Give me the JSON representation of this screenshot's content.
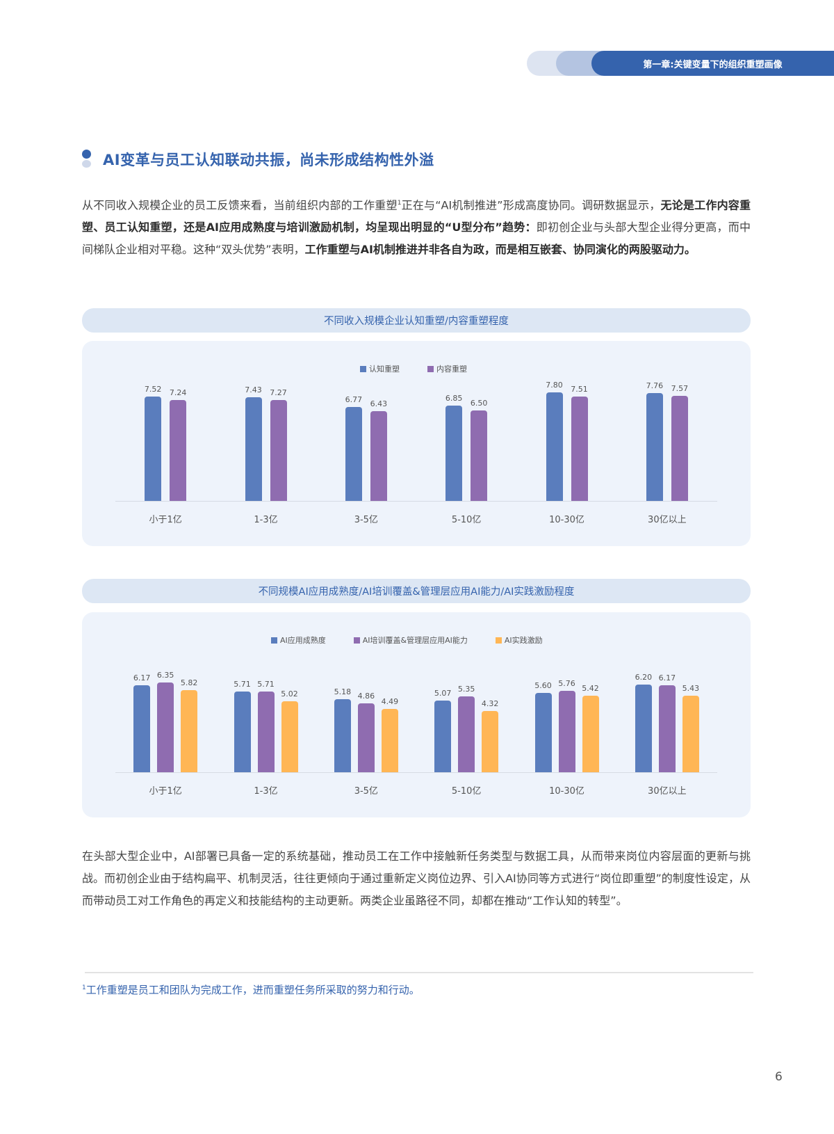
{
  "header": {
    "chapter_tab": "第一章:关键变量下的组织重塑画像"
  },
  "section": {
    "heading": "AI变革与员工认知联动共振，尚未形成结构性外溢"
  },
  "intro_paragraph": {
    "segments": [
      {
        "text": "从不同收入规模企业的员工反馈来看，当前组织内部的工作重塑",
        "bold": false
      },
      {
        "text": "1",
        "sup": true
      },
      {
        "text": "正在与“AI机制推进”形成高度协同。调研数据显示，",
        "bold": false
      },
      {
        "text": "无论是工作内容重塑、员工认知重塑，还是AI应用成熟度与培训激励机制，均呈现出明显的“U型分布”趋势：",
        "bold": true
      },
      {
        "text": "即初创企业与头部大型企业得分更高，而中间梯队企业相对平稳。这种“双头优势”表明，",
        "bold": false
      },
      {
        "text": "工作重塑与AI机制推进并非各自为政，而是相互嵌套、协同演化的两股驱动力。",
        "bold": true
      }
    ]
  },
  "chart1": {
    "title": "不同收入规模企业认知重塑/内容重塑程度"
  },
  "chart2": {
    "title": "不同规模AI应用成熟度/AI培训覆盖&管理层应用AI能力/AI实践激励程度"
  },
  "closing_paragraph": {
    "text": "在头部大型企业中，AI部署已具备一定的系统基础，推动员工在工作中接触新任务类型与数据工具，从而带来岗位内容层面的更新与挑战。而初创企业由于结构扁平、机制灵活，往往更倾向于通过重新定义岗位边界、引入AI协同等方式进行“岗位即重塑”的制度性设定，从而带动员工对工作角色的再定义和技能结构的主动更新。两类企业虽路径不同，却都在推动“工作认知的转型”。"
  },
  "footnote": {
    "marker": "1",
    "text": "工作重塑是员工和团队为完成工作，进而重塑任务所采取的努力和行动。"
  },
  "page_number": "6",
  "colors": {
    "blue": "#5a7dbd",
    "purple": "#8f6cb0",
    "orange": "#ffb655",
    "brand": "#3563ad"
  },
  "chart_data": [
    {
      "type": "bar",
      "title": "不同收入规模企业认知重塑/内容重塑程度",
      "categories": [
        "小于1亿",
        "1-3亿",
        "3-5亿",
        "5-10亿",
        "10-30亿",
        "30亿以上"
      ],
      "series": [
        {
          "name": "认知重塑",
          "color": "#5a7dbd",
          "values": [
            7.52,
            7.43,
            6.77,
            6.85,
            7.8,
            7.76
          ]
        },
        {
          "name": "内容重塑",
          "color": "#8f6cb0",
          "values": [
            7.24,
            7.27,
            6.43,
            6.5,
            7.51,
            7.57
          ]
        }
      ],
      "xlabel": "",
      "ylabel": "",
      "ylim": [
        0,
        8
      ],
      "grid": false,
      "legend_position": "top"
    },
    {
      "type": "bar",
      "title": "不同规模AI应用成熟度/AI培训覆盖&管理层应用AI能力/AI实践激励程度",
      "categories": [
        "小于1亿",
        "1-3亿",
        "3-5亿",
        "5-10亿",
        "10-30亿",
        "30亿以上"
      ],
      "series": [
        {
          "name": "AI应用成熟度",
          "color": "#5a7dbd",
          "values": [
            6.17,
            5.71,
            5.18,
            5.07,
            5.6,
            6.2
          ]
        },
        {
          "name": "AI培训覆盖&管理层应用AI能力",
          "color": "#8f6cb0",
          "values": [
            6.35,
            5.71,
            4.86,
            5.35,
            5.76,
            6.17
          ]
        },
        {
          "name": "AI实践激励",
          "color": "#ffb655",
          "values": [
            5.82,
            5.02,
            4.49,
            4.32,
            5.42,
            5.43
          ]
        }
      ],
      "xlabel": "",
      "ylabel": "",
      "ylim": [
        0,
        6.5
      ],
      "grid": false,
      "legend_position": "top"
    }
  ]
}
